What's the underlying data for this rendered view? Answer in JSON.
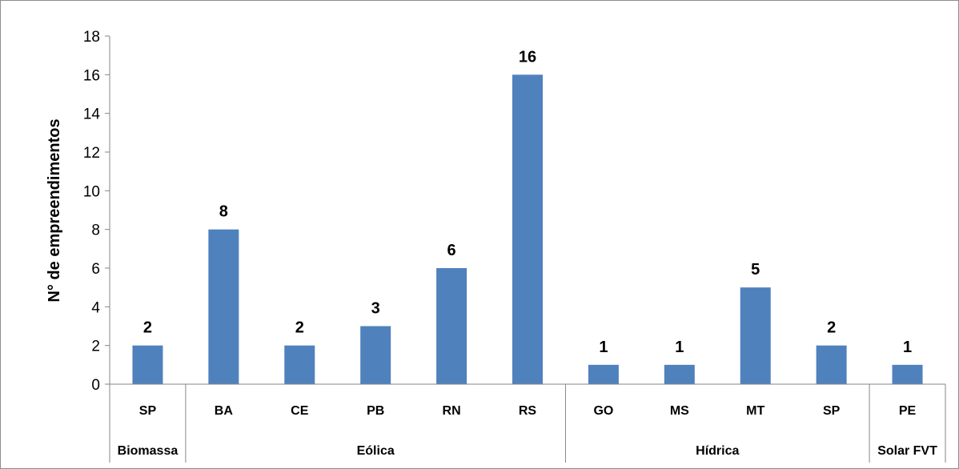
{
  "chart_data": {
    "type": "bar",
    "title": "",
    "xlabel": "",
    "ylabel": "N° de empreendimentos",
    "ylim": [
      0,
      18
    ],
    "ytick_step": 2,
    "yticks": [
      "0",
      "2",
      "4",
      "6",
      "8",
      "10",
      "12",
      "14",
      "16",
      "18"
    ],
    "categories": [
      "SP",
      "BA",
      "CE",
      "PB",
      "RN",
      "RS",
      "GO",
      "MS",
      "MT",
      "SP",
      "PE"
    ],
    "values": [
      2,
      8,
      2,
      3,
      6,
      16,
      1,
      1,
      5,
      2,
      1
    ],
    "groups": [
      {
        "name": "Biomassa",
        "count": 1
      },
      {
        "name": "Eólica",
        "count": 5
      },
      {
        "name": "Hídrica",
        "count": 4
      },
      {
        "name": "Solar FVT",
        "count": 1
      }
    ],
    "bar_color": "#4f81bd",
    "grid": false,
    "legend": "none",
    "data_labels": true
  }
}
